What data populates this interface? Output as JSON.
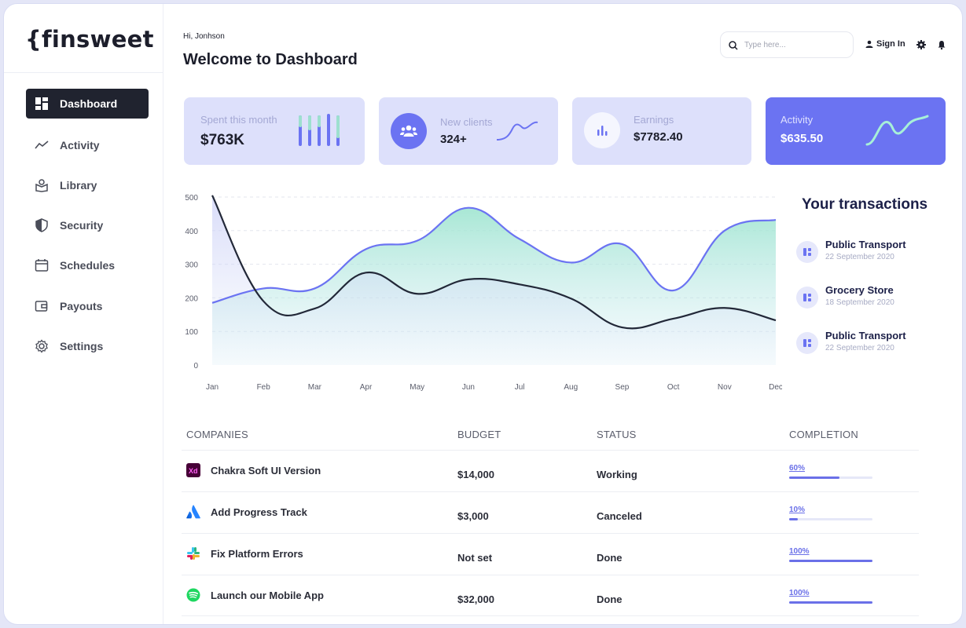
{
  "app": {
    "logo": "{finsweet"
  },
  "sidebar": {
    "items": [
      {
        "label": "Dashboard",
        "icon": "dashboard-icon",
        "active": true
      },
      {
        "label": "Activity",
        "icon": "activity-icon"
      },
      {
        "label": "Library",
        "icon": "library-icon"
      },
      {
        "label": "Security",
        "icon": "shield-icon"
      },
      {
        "label": "Schedules",
        "icon": "calendar-icon"
      },
      {
        "label": "Payouts",
        "icon": "wallet-icon"
      },
      {
        "label": "Settings",
        "icon": "gear-icon"
      }
    ]
  },
  "header": {
    "greeting": "Hi, Jonhson",
    "title": "Welcome to Dashboard",
    "search_placeholder": "Type here...",
    "signin_label": "Sign In"
  },
  "cards": [
    {
      "label": "Spent this month",
      "value": "$763K",
      "icon": "bars-icon"
    },
    {
      "label": "New clients",
      "value": "324+",
      "icon": "users-icon"
    },
    {
      "label": "Earnings",
      "value": "$7782.40",
      "icon": "bar-chart-icon"
    },
    {
      "label": "Activity",
      "value": "$635.50",
      "icon": "wave-icon"
    }
  ],
  "chart_data": {
    "type": "area",
    "categories": [
      "Jan",
      "Feb",
      "Mar",
      "Apr",
      "May",
      "Jun",
      "Jul",
      "Aug",
      "Sep",
      "Oct",
      "Nov",
      "Dec"
    ],
    "ylim": [
      0,
      500
    ],
    "yticks": [
      "500",
      "400",
      "300",
      "200",
      "100",
      "0"
    ],
    "series": [
      {
        "values": [
          185,
          228,
          228,
          345,
          370,
          468,
          375,
          305,
          360,
          222,
          400,
          432
        ],
        "color": "#6b73f2"
      },
      {
        "values": [
          505,
          190,
          168,
          275,
          212,
          255,
          240,
          198,
          112,
          138,
          170,
          133
        ],
        "color": "#222838"
      }
    ],
    "grid": true
  },
  "transactions": {
    "title": "Your transactions",
    "items": [
      {
        "name": "Public Transport",
        "date": "22 September 2020"
      },
      {
        "name": "Grocery Store",
        "date": "18 September 2020"
      },
      {
        "name": "Public Transport",
        "date": "22 September 2020"
      }
    ]
  },
  "table": {
    "headers": {
      "companies": "COMPANIES",
      "budget": "BUDGET",
      "status": "STATUS",
      "completion": "COMPLETION"
    },
    "rows": [
      {
        "company": "Chakra Soft UI Version",
        "icon": "xd-icon",
        "budget": "$14,000",
        "status": "Working",
        "completion_label": "60%",
        "completion": 0.6
      },
      {
        "company": "Add Progress Track",
        "icon": "atlassian-icon",
        "budget": "$3,000",
        "status": "Canceled",
        "completion_label": "10%",
        "completion": 0.1
      },
      {
        "company": "Fix Platform Errors",
        "icon": "slack-icon",
        "budget": "Not set",
        "status": "Done",
        "completion_label": "100%",
        "completion": 1.0
      },
      {
        "company": "Launch our Mobile App",
        "icon": "spotify-icon",
        "budget": "$32,000",
        "status": "Done",
        "completion_label": "100%",
        "completion": 1.0
      }
    ]
  }
}
